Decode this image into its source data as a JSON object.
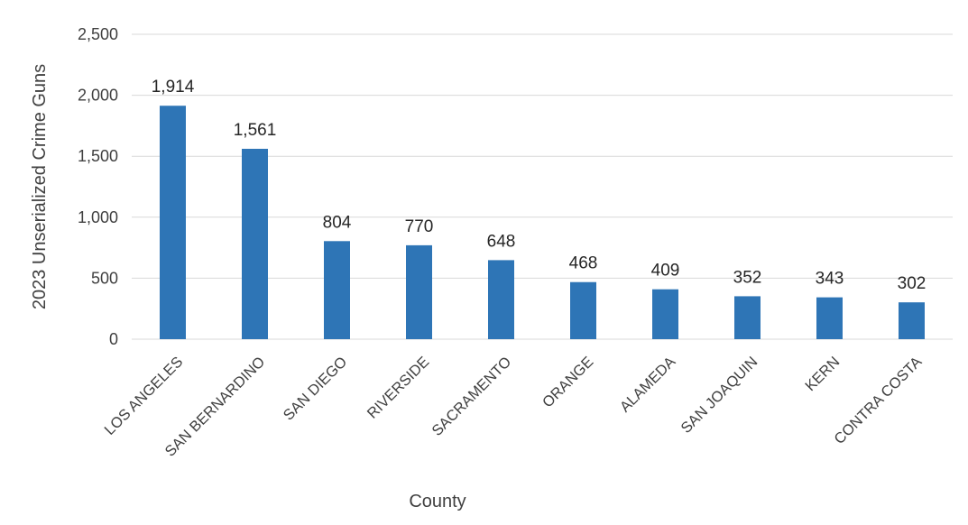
{
  "chart_data": {
    "type": "bar",
    "title": "",
    "xlabel": "County",
    "ylabel": "2023 Unserialized Crime Guns",
    "ylim": [
      0,
      2500
    ],
    "yticks": [
      0,
      500,
      1000,
      1500,
      2000,
      2500
    ],
    "ytick_labels": [
      "0",
      "500",
      "1,000",
      "1,500",
      "2,000",
      "2,500"
    ],
    "grid": true,
    "legend": "none",
    "bar_color": "#2e75b6",
    "categories": [
      "LOS ANGELES",
      "SAN BERNARDINO",
      "SAN DIEGO",
      "RIVERSIDE",
      "SACRAMENTO",
      "ORANGE",
      "ALAMEDA",
      "SAN JOAQUIN",
      "KERN",
      "CONTRA COSTA"
    ],
    "values": [
      1914,
      1561,
      804,
      770,
      648,
      468,
      409,
      352,
      343,
      302
    ],
    "value_labels": [
      "1,914",
      "1,561",
      "804",
      "770",
      "648",
      "468",
      "409",
      "352",
      "343",
      "302"
    ]
  }
}
